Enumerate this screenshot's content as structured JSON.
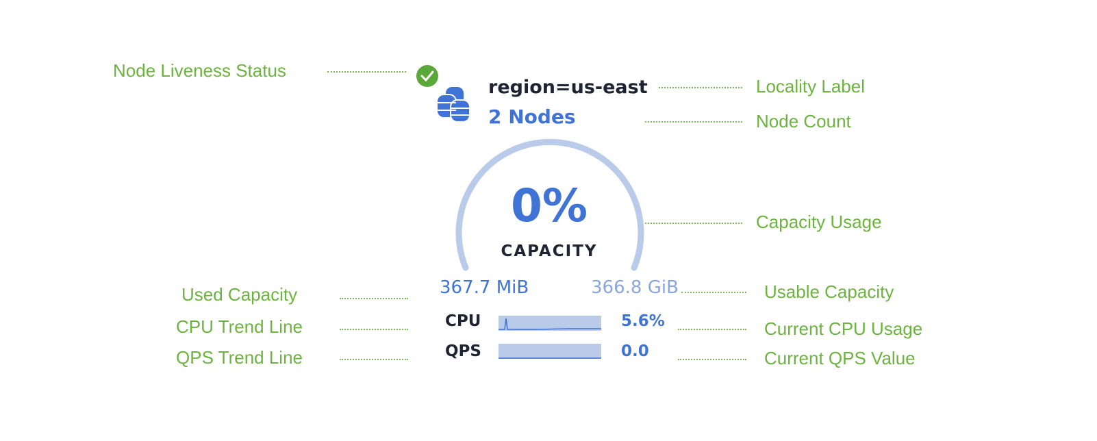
{
  "callouts": {
    "liveness": "Node Liveness Status",
    "locality": "Locality Label",
    "node_count": "Node Count",
    "capacity_usage": "Capacity Usage",
    "used_capacity": "Used Capacity",
    "usable_capacity": "Usable Capacity",
    "cpu_trend": "CPU Trend Line",
    "current_cpu": "Current CPU Usage",
    "qps_trend": "QPS Trend Line",
    "current_qps": "Current QPS Value"
  },
  "widget": {
    "locality": "region=us-east",
    "node_count": "2 Nodes",
    "status": "live",
    "capacity_percent": "0%",
    "capacity_fraction": 0,
    "capacity_label": "CAPACITY",
    "used": "367.7 MiB",
    "usable": "366.8 GiB",
    "cpu_label": "CPU",
    "cpu_value": "5.6%",
    "qps_label": "QPS",
    "qps_value": "0.0"
  },
  "colors": {
    "accent": "#3f73d6",
    "gauge": "#b9cbe9",
    "callout": "#6cb33f",
    "status_ok": "#5aa83a"
  }
}
